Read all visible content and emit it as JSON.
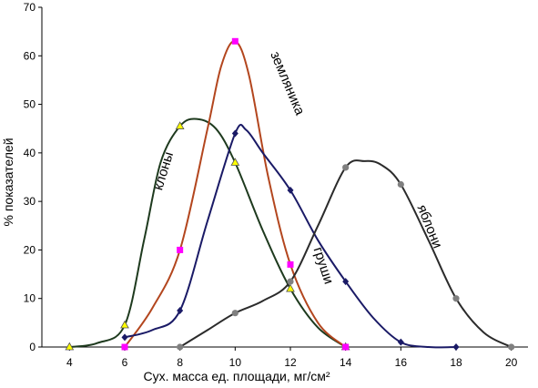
{
  "chart_data": {
    "type": "line",
    "xlabel": "Сух. масса ед. площади, мг/см²",
    "ylabel": "% показателей",
    "xlim": [
      3,
      21
    ],
    "ylim": [
      0,
      70
    ],
    "x_ticks": [
      4,
      6,
      8,
      10,
      12,
      14,
      16,
      18,
      20
    ],
    "y_ticks": [
      0,
      10,
      20,
      30,
      40,
      50,
      60,
      70
    ],
    "grid": false,
    "legend": "none",
    "series": [
      {
        "name": "клоны",
        "color": "#1e3a1e",
        "marker": "triangle",
        "marker_color": "#ffff00",
        "points": [
          [
            4,
            0
          ],
          [
            6,
            4.5
          ],
          [
            8,
            45.5
          ],
          [
            10,
            38
          ],
          [
            12,
            12
          ],
          [
            14,
            0
          ]
        ],
        "curve": [
          [
            4,
            0
          ],
          [
            5,
            0.8
          ],
          [
            6,
            4.5
          ],
          [
            6.7,
            22
          ],
          [
            7.3,
            38
          ],
          [
            8,
            45.5
          ],
          [
            8.6,
            47
          ],
          [
            9.3,
            45
          ],
          [
            10,
            38
          ],
          [
            11,
            24
          ],
          [
            12,
            12
          ],
          [
            13,
            4
          ],
          [
            14,
            0
          ]
        ]
      },
      {
        "name": "земляника",
        "color": "#b3461e",
        "marker": "square",
        "marker_color": "#ff00ff",
        "points": [
          [
            6,
            0
          ],
          [
            8,
            20
          ],
          [
            10,
            63
          ],
          [
            12,
            17
          ],
          [
            14,
            0
          ]
        ],
        "curve": [
          [
            6,
            0
          ],
          [
            7,
            8
          ],
          [
            8,
            20
          ],
          [
            9,
            45
          ],
          [
            9.5,
            58
          ],
          [
            10,
            63
          ],
          [
            10.5,
            56
          ],
          [
            11.2,
            35
          ],
          [
            12,
            17
          ],
          [
            13,
            5
          ],
          [
            14,
            0
          ]
        ]
      },
      {
        "name": "груши",
        "color": "#1a1a66",
        "marker": "diamond",
        "marker_color": "#1a1a66",
        "points": [
          [
            6,
            2
          ],
          [
            8,
            7.5
          ],
          [
            10,
            44
          ],
          [
            12,
            32.3
          ],
          [
            14,
            13.5
          ],
          [
            16,
            1
          ],
          [
            18,
            0
          ]
        ],
        "curve": [
          [
            6,
            2
          ],
          [
            7,
            3.5
          ],
          [
            8,
            7.5
          ],
          [
            9,
            26
          ],
          [
            10,
            44
          ],
          [
            10.4,
            44.7
          ],
          [
            11,
            40
          ],
          [
            12,
            32.3
          ],
          [
            13,
            22
          ],
          [
            14,
            13.5
          ],
          [
            15,
            6
          ],
          [
            16,
            1
          ],
          [
            17,
            0
          ],
          [
            18,
            0
          ]
        ]
      },
      {
        "name": "яблони",
        "color": "#2b2b2b",
        "marker": "circle",
        "marker_color": "#808080",
        "points": [
          [
            8,
            0
          ],
          [
            10,
            7
          ],
          [
            12,
            13.5
          ],
          [
            14,
            37
          ],
          [
            16,
            33.5
          ],
          [
            18,
            10
          ],
          [
            20,
            0
          ]
        ],
        "curve": [
          [
            8,
            0
          ],
          [
            9,
            3.5
          ],
          [
            10,
            7
          ],
          [
            11,
            9.5
          ],
          [
            12,
            13.5
          ],
          [
            13,
            25
          ],
          [
            14,
            37
          ],
          [
            14.7,
            38.3
          ],
          [
            15.3,
            37.5
          ],
          [
            16,
            33.5
          ],
          [
            17,
            22
          ],
          [
            18,
            10
          ],
          [
            19,
            3
          ],
          [
            20,
            0
          ]
        ]
      }
    ]
  }
}
